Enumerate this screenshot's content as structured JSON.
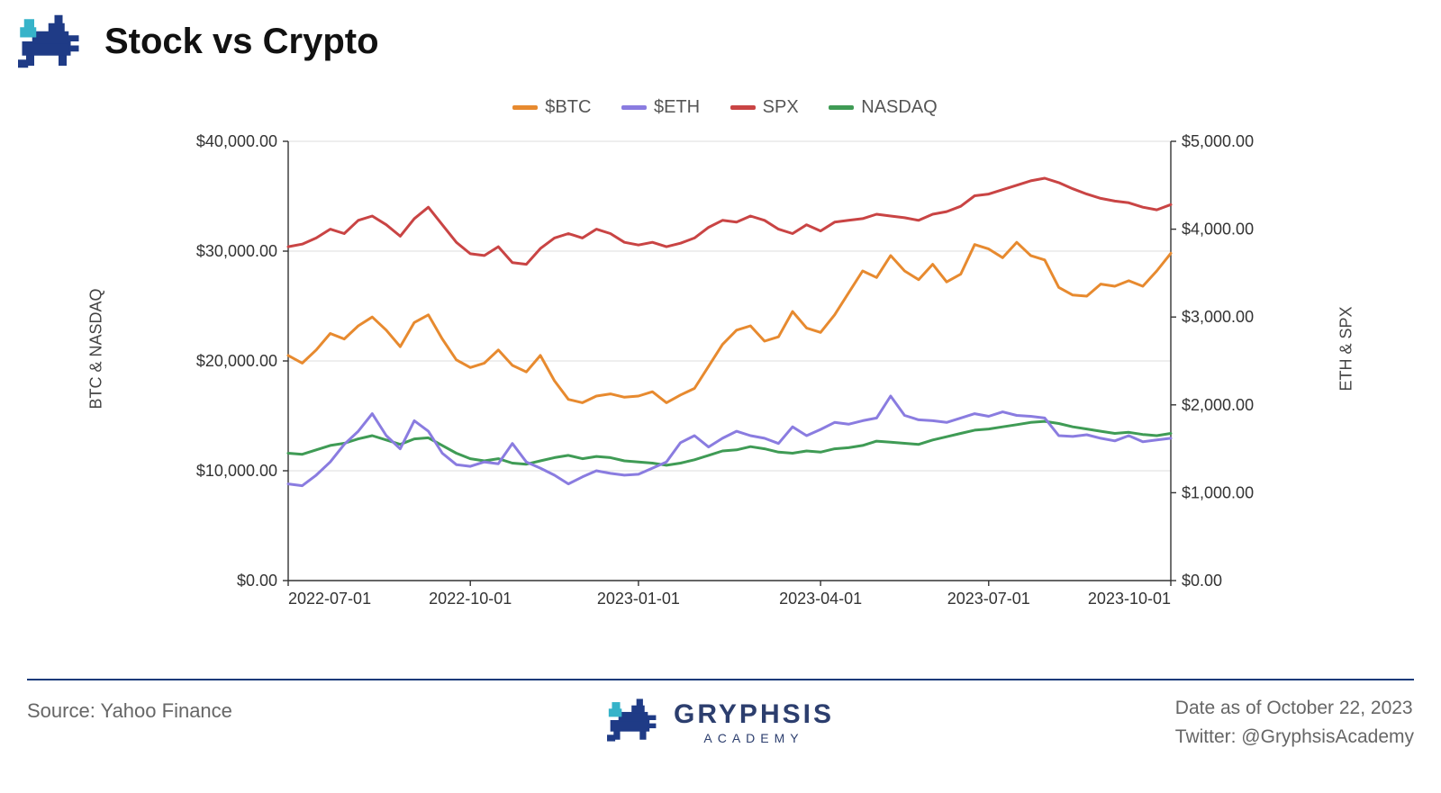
{
  "header": {
    "title": "Stock vs Crypto"
  },
  "chart": {
    "type": "line",
    "background_color": "#ffffff",
    "grid_color": "#dcdcdc",
    "axis_color": "#333333",
    "tick_fontsize": 18,
    "line_width": 3,
    "legend": [
      {
        "label": "$BTC",
        "color": "#e78a2f"
      },
      {
        "label": "$ETH",
        "color": "#8a7ce0"
      },
      {
        "label": "SPX",
        "color": "#c94444"
      },
      {
        "label": "NASDAQ",
        "color": "#3f9b55"
      }
    ],
    "x": {
      "ticks": [
        "2022-07-01",
        "2022-10-01",
        "2023-01-01",
        "2023-04-01",
        "2023-07-01",
        "2023-10-01"
      ],
      "min_index": 0,
      "max_index": 63
    },
    "y_left": {
      "title": "BTC & NASDAQ",
      "min": 0,
      "max": 40000,
      "tick_step": 10000,
      "tick_labels": [
        "$0.00",
        "$10,000.00",
        "$20,000.00",
        "$30,000.00",
        "$40,000.00"
      ]
    },
    "y_right": {
      "title": "ETH & SPX",
      "min": 0,
      "max": 5000,
      "tick_step": 1000,
      "tick_labels": [
        "$0.00",
        "$1,000.00",
        "$2,000.00",
        "$3,000.00",
        "$4,000.00",
        "$5,000.00"
      ]
    },
    "series": {
      "btc": {
        "axis": "left",
        "color": "#e78a2f",
        "values": [
          20500,
          19800,
          21000,
          22500,
          22000,
          23200,
          24000,
          22800,
          21300,
          23500,
          24200,
          22000,
          20100,
          19400,
          19800,
          21000,
          19600,
          19000,
          20500,
          18200,
          16500,
          16200,
          16800,
          17000,
          16700,
          16800,
          17200,
          16200,
          16900,
          17500,
          19500,
          21500,
          22800,
          23200,
          21800,
          22200,
          24500,
          23000,
          22600,
          24200,
          26200,
          28200,
          27600,
          29600,
          28200,
          27400,
          28800,
          27200,
          27900,
          30600,
          30200,
          29400,
          30800,
          29600,
          29200,
          26700,
          26000,
          25900,
          27000,
          26800,
          27300,
          26800,
          28200,
          29800
        ]
      },
      "eth": {
        "axis": "right",
        "color": "#8a7ce0",
        "values": [
          1100,
          1080,
          1200,
          1350,
          1550,
          1700,
          1900,
          1650,
          1500,
          1820,
          1700,
          1450,
          1320,
          1300,
          1350,
          1330,
          1560,
          1350,
          1280,
          1200,
          1100,
          1180,
          1250,
          1220,
          1200,
          1210,
          1280,
          1350,
          1570,
          1650,
          1520,
          1620,
          1700,
          1650,
          1620,
          1560,
          1750,
          1650,
          1720,
          1800,
          1780,
          1820,
          1850,
          2100,
          1880,
          1830,
          1820,
          1800,
          1850,
          1900,
          1870,
          1920,
          1880,
          1870,
          1850,
          1650,
          1640,
          1660,
          1620,
          1590,
          1650,
          1580,
          1600,
          1620
        ]
      },
      "spx": {
        "axis": "right",
        "color": "#c94444",
        "values": [
          3800,
          3830,
          3900,
          4000,
          3950,
          4100,
          4150,
          4050,
          3920,
          4120,
          4250,
          4050,
          3850,
          3720,
          3700,
          3800,
          3620,
          3600,
          3780,
          3900,
          3950,
          3900,
          4000,
          3950,
          3850,
          3820,
          3850,
          3800,
          3840,
          3900,
          4020,
          4100,
          4080,
          4150,
          4100,
          4000,
          3950,
          4050,
          3980,
          4080,
          4100,
          4120,
          4170,
          4150,
          4130,
          4100,
          4170,
          4200,
          4260,
          4380,
          4400,
          4450,
          4500,
          4550,
          4580,
          4530,
          4460,
          4400,
          4350,
          4320,
          4300,
          4250,
          4220,
          4280
        ]
      },
      "nasdaq": {
        "axis": "left",
        "color": "#3f9b55",
        "values": [
          11600,
          11500,
          11900,
          12300,
          12500,
          12900,
          13200,
          12800,
          12400,
          12900,
          13000,
          12300,
          11600,
          11100,
          10900,
          11100,
          10700,
          10600,
          10900,
          11200,
          11400,
          11100,
          11300,
          11200,
          10900,
          10800,
          10700,
          10500,
          10700,
          11000,
          11400,
          11800,
          11900,
          12200,
          12000,
          11700,
          11600,
          11800,
          11700,
          12000,
          12100,
          12300,
          12700,
          12600,
          12500,
          12400,
          12800,
          13100,
          13400,
          13700,
          13800,
          14000,
          14200,
          14400,
          14500,
          14300,
          14000,
          13800,
          13600,
          13400,
          13500,
          13300,
          13200,
          13400
        ]
      }
    }
  },
  "footer": {
    "source": "Source: Yahoo Finance",
    "brand_main": "GRYPHSIS",
    "brand_sub": "ACADEMY",
    "date": "Date as of October 22, 2023",
    "twitter": "Twitter: @GryphsisAcademy"
  },
  "logo_colors": {
    "main": "#1f3b86",
    "accent": "#36b3c9"
  }
}
